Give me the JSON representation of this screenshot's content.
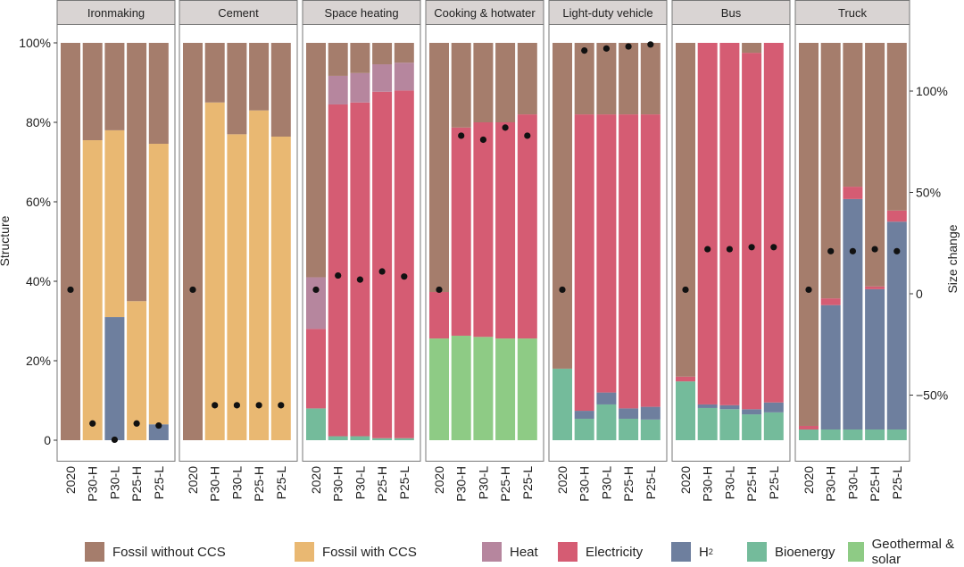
{
  "chart_data": {
    "type": "bar",
    "subtype": "stacked-bar-with-dot-overlay, faceted",
    "ylabel_left": "Structure",
    "ylabel_right": "Size change",
    "left_ticks": [
      "0",
      "20%",
      "40%",
      "60%",
      "80%",
      "100%"
    ],
    "left_tick_values": [
      0,
      20,
      40,
      60,
      80,
      100
    ],
    "ylim_left": [
      0,
      100
    ],
    "right_ticks": [
      "−50%",
      "0",
      "50%",
      "100%"
    ],
    "right_tick_values": [
      -50,
      0,
      50,
      100
    ],
    "ylim_right": [
      -74,
      122
    ],
    "grid": false,
    "legend_placement": "bottom",
    "categories": [
      "2020",
      "P30-H",
      "P30-L",
      "P25-H",
      "P25-L"
    ],
    "series_order": [
      "Bioenergy",
      "Geothermal & solar",
      "H2",
      "Fossil with CCS",
      "Electricity",
      "Heat",
      "Fossil without CCS"
    ],
    "legend": [
      {
        "key": "fossil",
        "label": "Fossil without CCS",
        "color": "#a57d6c"
      },
      {
        "key": "ccs",
        "label": "Fossil with CCS",
        "color": "#e9b872"
      },
      {
        "key": "heat",
        "label": "Heat",
        "color": "#b6869e"
      },
      {
        "key": "elec",
        "label": "Electricity",
        "color": "#d55c73"
      },
      {
        "key": "h2",
        "label": "H",
        "sub": "2",
        "color": "#6e7f9e"
      },
      {
        "key": "bio",
        "label": "Bioenergy",
        "color": "#74bb9b"
      },
      {
        "key": "geo",
        "label": "Geothermal & solar",
        "color": "#8ecb85"
      }
    ],
    "strip_color": "#d9d4d3",
    "dot_color": "#111111",
    "panels": [
      {
        "title": "Ironmaking",
        "structure": [
          {
            "fossil": 100
          },
          {
            "ccs": 75.5,
            "fossil": 24.5
          },
          {
            "h2": 31,
            "ccs": 47,
            "fossil": 22
          },
          {
            "ccs": 35,
            "fossil": 65
          },
          {
            "h2": 4,
            "ccs": 70.6,
            "fossil": 25.4
          }
        ],
        "size_change": [
          2,
          -64,
          -72,
          -64,
          -65
        ]
      },
      {
        "title": "Cement",
        "structure": [
          {
            "fossil": 100
          },
          {
            "ccs": 85,
            "fossil": 15
          },
          {
            "ccs": 77,
            "fossil": 23
          },
          {
            "ccs": 83,
            "fossil": 17
          },
          {
            "ccs": 76.4,
            "fossil": 23.6
          }
        ],
        "size_change": [
          2,
          -55,
          -55,
          -55,
          -55
        ]
      },
      {
        "title": "Space heating",
        "structure": [
          {
            "bio": 8,
            "elec": 20,
            "heat": 13,
            "fossil": 59
          },
          {
            "bio": 1,
            "elec": 83.5,
            "heat": 7.2,
            "fossil": 8.3
          },
          {
            "bio": 1,
            "elec": 84,
            "heat": 7.4,
            "fossil": 7.6
          },
          {
            "bio": 0.5,
            "elec": 87.2,
            "heat": 6.9,
            "fossil": 5.4
          },
          {
            "bio": 0.5,
            "elec": 87.5,
            "heat": 7,
            "fossil": 5
          }
        ],
        "size_change": [
          2,
          9,
          7,
          11,
          8.5
        ]
      },
      {
        "title": "Cooking & hotwater",
        "structure": [
          {
            "geo": 25.6,
            "elec": 11.7,
            "fossil": 62.7
          },
          {
            "geo": 26.3,
            "elec": 52.4,
            "fossil": 21.3
          },
          {
            "geo": 26,
            "elec": 54,
            "fossil": 20
          },
          {
            "geo": 25.6,
            "elec": 54.4,
            "fossil": 20
          },
          {
            "geo": 25.6,
            "elec": 56.4,
            "fossil": 18
          }
        ],
        "size_change": [
          2,
          78,
          76,
          82,
          78
        ]
      },
      {
        "title": "Light-duty vehicle",
        "structure": [
          {
            "bio": 18,
            "fossil": 82
          },
          {
            "bio": 5.4,
            "h2": 2,
            "elec": 74.6,
            "fossil": 18
          },
          {
            "bio": 9,
            "h2": 3,
            "elec": 70,
            "fossil": 18
          },
          {
            "bio": 5.4,
            "h2": 2.6,
            "elec": 74,
            "fossil": 18
          },
          {
            "bio": 5.2,
            "h2": 3.2,
            "elec": 73.6,
            "fossil": 18
          }
        ],
        "size_change": [
          2,
          120,
          121,
          122,
          123
        ]
      },
      {
        "title": "Bus",
        "structure": [
          {
            "bio": 14.8,
            "elec": 1.2,
            "fossil": 84
          },
          {
            "bio": 8.1,
            "h2": 0.9,
            "elec": 91
          },
          {
            "bio": 7.8,
            "h2": 1,
            "elec": 91.2
          },
          {
            "bio": 6.5,
            "h2": 1.3,
            "elec": 89.7,
            "fossil": 2.5
          },
          {
            "bio": 7,
            "h2": 2.5,
            "elec": 90.5
          }
        ],
        "size_change": [
          2,
          22,
          22,
          23,
          23
        ]
      },
      {
        "title": "Truck",
        "structure": [
          {
            "bio": 2.7,
            "elec": 0.9,
            "fossil": 96.4
          },
          {
            "bio": 2.7,
            "h2": 31.3,
            "elec": 1.7,
            "fossil": 64.3
          },
          {
            "bio": 2.7,
            "h2": 58,
            "elec": 3.1,
            "fossil": 36.2
          },
          {
            "bio": 2.7,
            "h2": 35.3,
            "elec": 0.7,
            "fossil": 61.3
          },
          {
            "bio": 2.7,
            "h2": 52.3,
            "elec": 2.8,
            "fossil": 42.2
          }
        ],
        "size_change": [
          2,
          21,
          21,
          22,
          21
        ]
      }
    ]
  }
}
